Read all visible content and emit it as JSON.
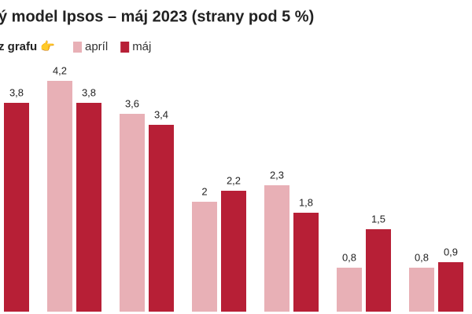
{
  "chart_data": {
    "type": "bar",
    "title": "ý model Ipsos – máj 2023 (strany pod 5 %)",
    "legend_prefix": "z grafu 👉",
    "categories": [
      null,
      null,
      null,
      null,
      null,
      null,
      null
    ],
    "series": [
      {
        "name": "apríl",
        "color": "#e8b0b6",
        "values": [
          null,
          4.2,
          3.6,
          2,
          2.3,
          0.8,
          0.8
        ],
        "value_labels": [
          null,
          "4,2",
          "3,6",
          "2",
          "2,3",
          "0,8",
          "0,8"
        ]
      },
      {
        "name": "máj",
        "color": "#b71f36",
        "values": [
          3.8,
          3.8,
          3.4,
          2.2,
          1.8,
          1.5,
          0.9
        ],
        "value_labels": [
          "3,8",
          "3,8",
          "3,4",
          "2,2",
          "1,8",
          "1,5",
          "0,9"
        ]
      }
    ]
  }
}
